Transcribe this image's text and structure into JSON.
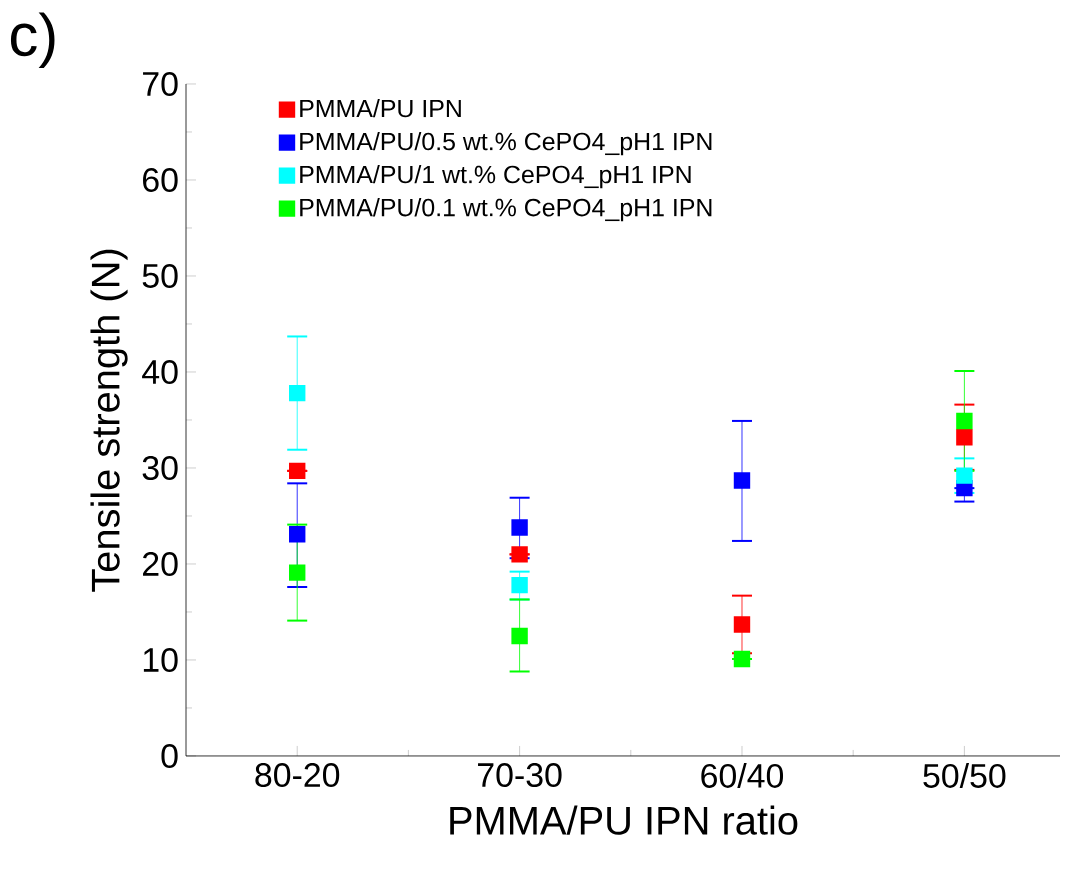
{
  "chart_data": {
    "type": "scatter",
    "xlabel": "PMMA/PU IPN ratio",
    "ylabel": "Tensile strength (N)",
    "annotations": [
      "c)"
    ],
    "categories": [
      "80-20",
      "70-30",
      "60/40",
      "50/50"
    ],
    "ylim": [
      0,
      70
    ],
    "yticks": [
      0,
      10,
      20,
      30,
      40,
      50,
      60,
      70
    ],
    "legend": "top left",
    "marker": "square",
    "series": [
      {
        "name": "PMMA/PU IPN",
        "color": "#ff0000",
        "values": [
          29.7,
          21.0,
          13.7,
          33.2
        ],
        "errors": [
          null,
          null,
          [
            10.7,
            16.7
          ],
          [
            29.8,
            36.6
          ]
        ]
      },
      {
        "name": "PMMA/PU/0.5 wt.% CePO4_pH1 IPN",
        "color": "#0000ff",
        "values": [
          23.1,
          23.8,
          28.7,
          27.9
        ],
        "errors": [
          [
            17.6,
            28.4
          ],
          [
            20.6,
            26.9
          ],
          [
            22.4,
            34.9
          ],
          [
            26.5,
            27.9
          ]
        ]
      },
      {
        "name": "PMMA/PU/1 wt.% CePO4_pH1 IPN",
        "color": "#00ffff",
        "values": [
          37.8,
          17.8,
          null,
          29.2
        ],
        "errors": [
          [
            31.9,
            43.7
          ],
          [
            16.3,
            19.2
          ],
          null,
          [
            27.4,
            31.0
          ]
        ]
      },
      {
        "name": "PMMA/PU/0.1 wt.% CePO4_pH1 IPN",
        "color": "#00ff00",
        "values": [
          19.1,
          12.5,
          10.1,
          34.9
        ],
        "errors": [
          [
            14.1,
            24.1
          ],
          [
            8.8,
            16.3
          ],
          null,
          [
            29.7,
            40.1
          ]
        ]
      }
    ]
  }
}
